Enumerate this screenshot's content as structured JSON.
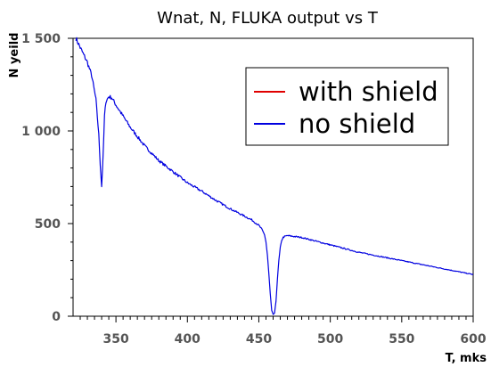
{
  "chart_data": {
    "type": "line",
    "title": "Wnat,  N, FLUKA output  vs  T",
    "xlabel": "T,  mks",
    "ylabel": "N yeild",
    "xlim": [
      320,
      600
    ],
    "ylim": [
      0,
      1500
    ],
    "x_ticks": [
      350,
      400,
      450,
      500,
      550,
      600
    ],
    "x_tick_labels": [
      "350",
      "400",
      "450",
      "500",
      "550",
      "600"
    ],
    "y_ticks": [
      0,
      500,
      1000,
      1500
    ],
    "y_tick_labels": [
      "0",
      "500",
      "1 000",
      "1 500"
    ],
    "grid": false,
    "legend_position": "top-right",
    "series": [
      {
        "name": "with shield",
        "color": "#e00000",
        "x": [],
        "y": []
      },
      {
        "name": "no shield",
        "color": "#0000e0",
        "x": [
          322,
          325,
          330,
          333,
          336,
          338,
          339,
          340,
          341,
          342,
          343,
          345,
          347,
          350,
          355,
          360,
          370,
          380,
          390,
          400,
          410,
          420,
          430,
          440,
          445,
          450,
          452,
          454,
          455,
          456,
          457,
          458,
          459,
          460,
          461,
          462,
          463,
          464,
          465,
          466,
          467,
          468,
          470,
          475,
          480,
          490,
          500,
          510,
          520,
          530,
          540,
          550,
          560,
          570,
          580,
          590,
          600
        ],
        "y": [
          1500,
          1450,
          1370,
          1300,
          1170,
          980,
          820,
          700,
          860,
          1080,
          1160,
          1185,
          1180,
          1140,
          1080,
          1020,
          920,
          840,
          780,
          720,
          675,
          625,
          580,
          540,
          520,
          490,
          470,
          440,
          400,
          330,
          230,
          120,
          30,
          10,
          15,
          80,
          200,
          300,
          370,
          410,
          425,
          430,
          435,
          430,
          425,
          405,
          385,
          365,
          345,
          330,
          315,
          300,
          285,
          270,
          255,
          240,
          225
        ]
      }
    ]
  },
  "legend": {
    "items": [
      {
        "label": "with shield",
        "color": "#e00000"
      },
      {
        "label": "no shield",
        "color": "#0000e0"
      }
    ]
  }
}
